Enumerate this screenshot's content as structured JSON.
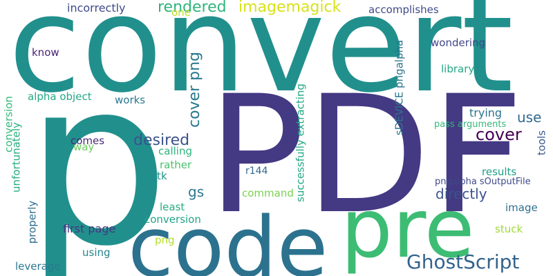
{
  "words": [
    {
      "text": "p",
      "color": "#21908d"
    },
    {
      "text": "convert",
      "color": "#21908d"
    },
    {
      "text": "PDF",
      "color": "#443983"
    },
    {
      "text": "pre",
      "color": "#3dbc74"
    },
    {
      "text": "code",
      "color": "#2c728e"
    },
    {
      "text": "GhostScript",
      "color": "#33638d"
    },
    {
      "text": "imagemagick",
      "color": "#d8e219"
    },
    {
      "text": "rendered",
      "color": "#2fb47c"
    },
    {
      "text": "cover png",
      "color": "#2a788e"
    },
    {
      "text": "cover",
      "color": "#440154"
    },
    {
      "text": "desired",
      "color": "#3b528b"
    },
    {
      "text": "use",
      "color": "#31688e"
    },
    {
      "text": "directly",
      "color": "#3b528b"
    },
    {
      "text": "gs",
      "color": "#2a788e"
    },
    {
      "text": "incorrectly",
      "color": "#3e4989"
    },
    {
      "text": "one",
      "color": "#bddf26"
    },
    {
      "text": "accomplishes",
      "color": "#3e4a89"
    },
    {
      "text": "know",
      "color": "#482475"
    },
    {
      "text": "alpha object",
      "color": "#22a884"
    },
    {
      "text": "works",
      "color": "#2a788e"
    },
    {
      "text": "wondering",
      "color": "#404688"
    },
    {
      "text": "library",
      "color": "#22a884"
    },
    {
      "text": "trying",
      "color": "#2c728e"
    },
    {
      "text": "pass arguments",
      "color": "#35b779"
    },
    {
      "text": "comes",
      "color": "#482878"
    },
    {
      "text": "way",
      "color": "#6ccd5a"
    },
    {
      "text": "calling",
      "color": "#2db27d"
    },
    {
      "text": "rather",
      "color": "#4ac16d"
    },
    {
      "text": "pdftk",
      "color": "#21918c"
    },
    {
      "text": "r144",
      "color": "#31688e"
    },
    {
      "text": "results",
      "color": "#1f9e89"
    },
    {
      "text": "pngalpha sOutputFile",
      "color": "#3e4989"
    },
    {
      "text": "command",
      "color": "#7ad151"
    },
    {
      "text": "least",
      "color": "#27ad81"
    },
    {
      "text": "image",
      "color": "#2e6e8e"
    },
    {
      "text": "first page",
      "color": "#453781"
    },
    {
      "text": "conversion",
      "color": "#20a486"
    },
    {
      "text": "png",
      "color": "#b5de2b"
    },
    {
      "text": "stuck",
      "color": "#a0da39"
    },
    {
      "text": "using",
      "color": "#25858e"
    },
    {
      "text": "leverage",
      "color": "#2a788e"
    },
    {
      "text": "conversion",
      "color": "#35b779"
    },
    {
      "text": "unfortunately",
      "color": "#27ad81"
    },
    {
      "text": "properly",
      "color": "#2e6e8e"
    },
    {
      "text": "successfully extracting",
      "color": "#22a884"
    },
    {
      "text": "sDEVICE pngalpha",
      "color": "#2a768e"
    },
    {
      "text": "tools",
      "color": "#38588c"
    }
  ]
}
